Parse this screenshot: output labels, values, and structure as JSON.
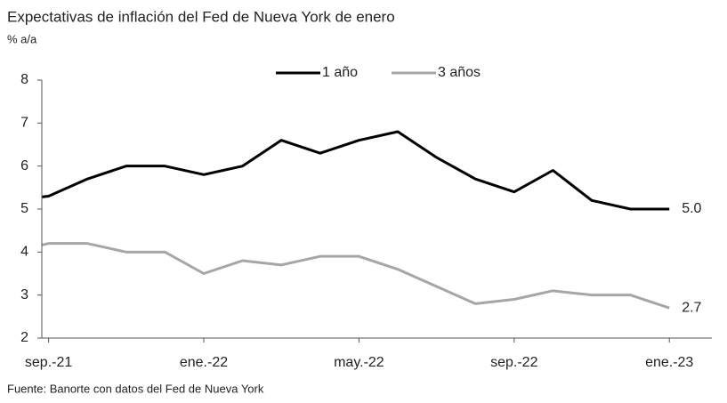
{
  "chart_data": {
    "type": "line",
    "title": "Expectativas de inflación del Fed de Nueva York de enero",
    "subtitle": "% a/a",
    "source": "Fuente: Banorte con datos del Fed de Nueva York",
    "categories": [
      null,
      "sep.-21",
      null,
      null,
      null,
      "ene.-22",
      null,
      null,
      null,
      "may.-22",
      null,
      null,
      null,
      "sep.-22",
      null,
      null,
      null,
      "ene.-23"
    ],
    "series": [
      {
        "name": "1 año",
        "color": "#000000",
        "values": [
          5.2,
          5.3,
          5.7,
          6.0,
          6.0,
          5.8,
          6.0,
          6.6,
          6.3,
          6.6,
          6.8,
          6.2,
          5.7,
          5.4,
          5.9,
          5.2,
          5.0,
          5.0
        ],
        "value_labels": [
          null,
          null,
          null,
          null,
          null,
          null,
          null,
          null,
          null,
          null,
          null,
          null,
          null,
          null,
          null,
          null,
          null,
          "5.0"
        ]
      },
      {
        "name": "3 años",
        "color": "#a6a6a6",
        "values": [
          4.0,
          4.2,
          4.2,
          4.0,
          4.0,
          3.5,
          3.8,
          3.7,
          3.9,
          3.9,
          3.6,
          3.2,
          2.8,
          2.9,
          3.1,
          3.0,
          3.0,
          2.7
        ],
        "value_labels": [
          null,
          null,
          null,
          null,
          null,
          null,
          null,
          null,
          null,
          null,
          null,
          null,
          null,
          null,
          null,
          null,
          null,
          "2.7"
        ]
      }
    ],
    "ylim": [
      2,
      8
    ],
    "yticks": [
      2,
      3,
      4,
      5,
      6,
      7,
      8
    ],
    "legend": "top"
  }
}
